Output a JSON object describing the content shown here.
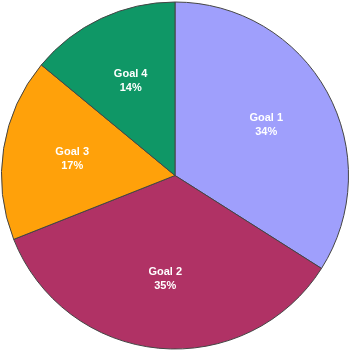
{
  "chart_data": {
    "type": "pie",
    "categories": [
      "Goal 1",
      "Goal 2",
      "Goal 3",
      "Goal 4"
    ],
    "values": [
      34,
      35,
      17,
      14
    ],
    "value_labels": [
      "34%",
      "35%",
      "17%",
      "14%"
    ],
    "colors": [
      "#9f9ffc",
      "#b03265",
      "#ffa10a",
      "#0f9766"
    ],
    "data_labels": true
  }
}
